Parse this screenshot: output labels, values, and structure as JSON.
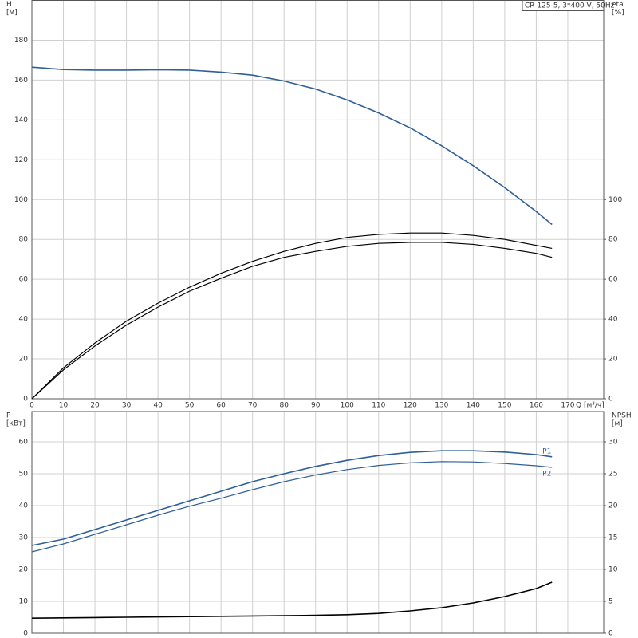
{
  "chart_data": [
    {
      "type": "line",
      "title": "CR 125-5, 3*400 V, 50Hz",
      "ylabel": [
        "H",
        "[м]"
      ],
      "y2label": [
        "eta",
        "[%]"
      ],
      "xlabel": "Q [м³/ч]",
      "x": [
        0,
        10,
        20,
        30,
        40,
        50,
        60,
        70,
        80,
        90,
        100,
        110,
        120,
        130,
        140,
        150,
        160,
        165
      ],
      "xlim": [
        0,
        181.4
      ],
      "xticks": [
        0,
        10,
        20,
        30,
        40,
        50,
        60,
        70,
        80,
        90,
        100,
        110,
        120,
        130,
        140,
        150,
        160,
        170
      ],
      "ylim": [
        0,
        200
      ],
      "yticks": [
        0,
        20,
        40,
        60,
        80,
        100,
        120,
        140,
        160,
        180
      ],
      "y2lim": [
        0,
        200
      ],
      "y2ticks": [
        0,
        20,
        40,
        60,
        80,
        100
      ],
      "grid": true,
      "series": [
        {
          "color": "#2f5f98",
          "values": [
            166.5,
            165.3,
            165,
            165,
            165.2,
            165,
            164,
            162.5,
            159.5,
            155.5,
            150,
            143.5,
            136,
            127,
            117,
            106,
            94,
            87.5
          ]
        },
        {
          "color": "#000000",
          "axis": "y2",
          "values": [
            0,
            15.5,
            28,
            39,
            48,
            56,
            63,
            69,
            74,
            78,
            81,
            82.5,
            83.2,
            83.2,
            82,
            80,
            77,
            75.5
          ]
        },
        {
          "color": "#000000",
          "axis": "y2",
          "values": [
            0,
            14.5,
            26.5,
            37,
            46,
            54,
            60.5,
            66.5,
            71,
            74,
            76.5,
            78,
            78.5,
            78.5,
            77.5,
            75.5,
            73,
            71
          ]
        }
      ]
    },
    {
      "type": "line",
      "ylabel": [
        "P",
        "[кВт]"
      ],
      "y2label": [
        "NPSH",
        "[м]"
      ],
      "x": [
        0,
        10,
        20,
        30,
        40,
        50,
        60,
        70,
        80,
        90,
        100,
        110,
        120,
        130,
        140,
        150,
        160,
        165
      ],
      "xlim": [
        0,
        181.4
      ],
      "ylim": [
        0,
        69.5
      ],
      "yticks": [
        0,
        10,
        20,
        30,
        40,
        50,
        60
      ],
      "y2lim": [
        0,
        34.75
      ],
      "y2ticks": [
        0,
        5,
        10,
        15,
        20,
        25,
        30
      ],
      "grid": true,
      "series": [
        {
          "name": "P1",
          "color": "#2f5f98",
          "values": [
            27.5,
            29.5,
            32.5,
            35.5,
            38.5,
            41.5,
            44.5,
            47.5,
            50,
            52.3,
            54.2,
            55.7,
            56.7,
            57.2,
            57.2,
            56.8,
            56,
            55.3
          ]
        },
        {
          "name": "P2",
          "color": "#2f5f98",
          "values": [
            25.5,
            28,
            31,
            34,
            37,
            39.8,
            42.3,
            45,
            47.5,
            49.6,
            51.3,
            52.6,
            53.4,
            53.8,
            53.7,
            53.2,
            52.5,
            52
          ]
        },
        {
          "color": "#000000",
          "axis": "y2",
          "values": [
            2.35,
            2.4,
            2.45,
            2.5,
            2.55,
            2.6,
            2.65,
            2.7,
            2.75,
            2.8,
            2.9,
            3.1,
            3.5,
            4,
            4.75,
            5.75,
            7,
            8
          ]
        }
      ]
    }
  ]
}
